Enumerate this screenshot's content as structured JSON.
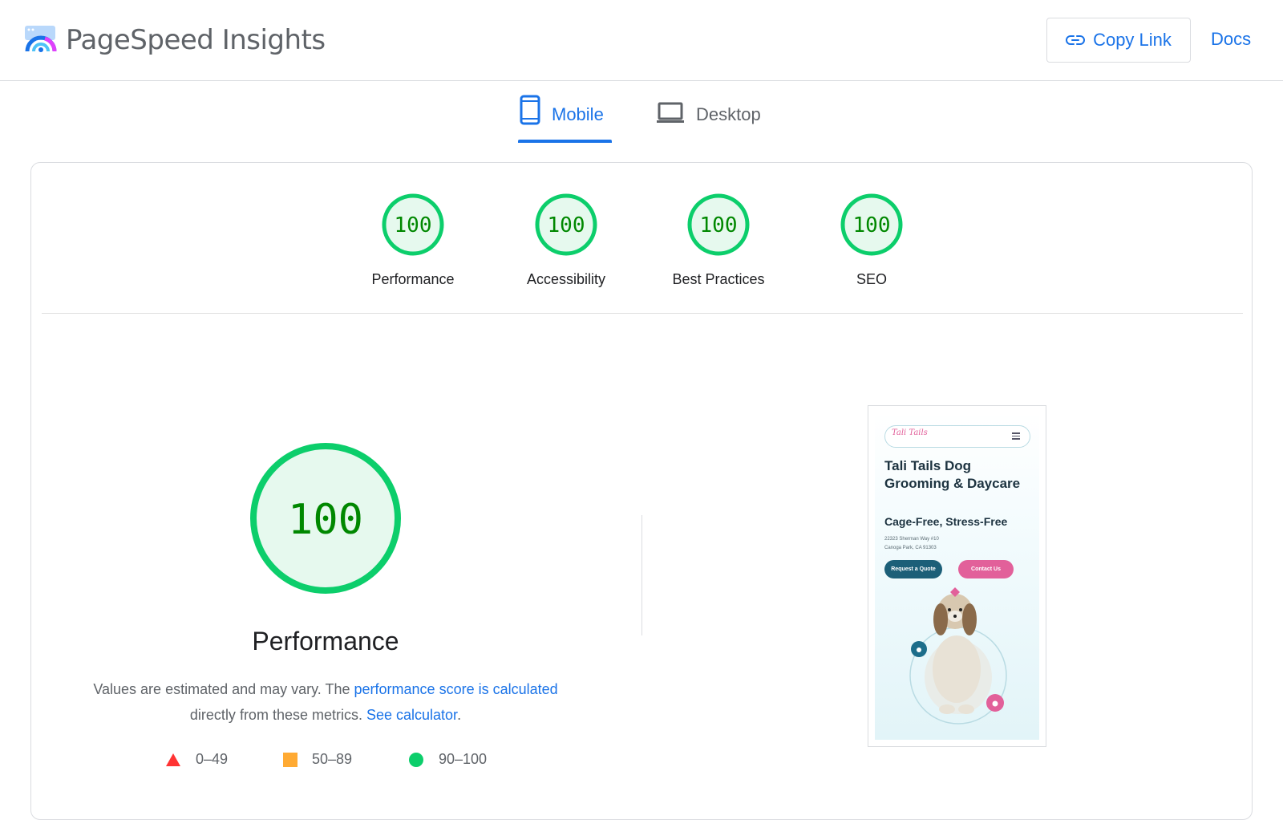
{
  "header": {
    "brand": "PageSpeed Insights",
    "copy_link_label": "Copy Link",
    "docs_label": "Docs"
  },
  "tabs": [
    {
      "label": "Mobile",
      "active": true,
      "icon": "phone-icon"
    },
    {
      "label": "Desktop",
      "active": false,
      "icon": "laptop-icon"
    }
  ],
  "scores": [
    {
      "name": "Performance",
      "score": "100"
    },
    {
      "name": "Accessibility",
      "score": "100"
    },
    {
      "name": "Best Practices",
      "score": "100"
    },
    {
      "name": "SEO",
      "score": "100"
    }
  ],
  "performance": {
    "score": "100",
    "title": "Performance",
    "desc_prefix": "Values are estimated and may vary. The ",
    "desc_link1": "performance score is calculated",
    "desc_middle": " directly from these metrics. ",
    "desc_link2": "See calculator",
    "desc_suffix": "."
  },
  "legend": [
    {
      "range": "0–49",
      "shape": "triangle",
      "color": "#ff3333"
    },
    {
      "range": "50–89",
      "shape": "square",
      "color": "#ffaa33"
    },
    {
      "range": "90–100",
      "shape": "circle",
      "color": "#0cce6b"
    }
  ],
  "colors": {
    "accent": "#1a73e8",
    "pass_green": "#0cce6b",
    "pass_fill": "#e6f9ee",
    "pass_text": "#008800"
  },
  "thumbnail": {
    "logo_text": "Tali Tails",
    "title": "Tali Tails Dog Grooming & Daycare",
    "subtitle": "Cage-Free, Stress-Free",
    "address_line1": "22323 Sherman Way #10",
    "address_line2": "Canoga Park, CA 91303",
    "quote_button": "Request a Quote",
    "contact_button": "Contact Us"
  }
}
